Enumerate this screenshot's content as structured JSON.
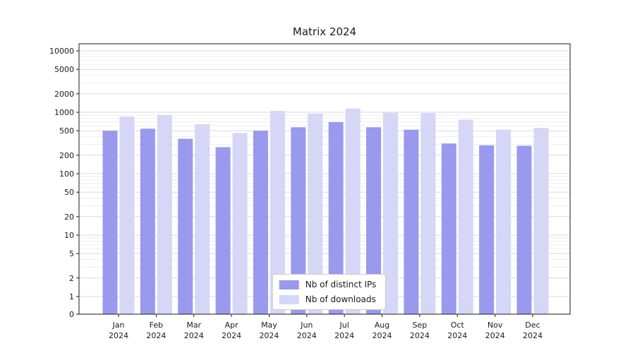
{
  "chart_data": {
    "type": "bar",
    "title": "Matrix 2024",
    "categories": [
      "Jan",
      "Feb",
      "Mar",
      "Apr",
      "May",
      "Jun",
      "Jul",
      "Aug",
      "Sep",
      "Oct",
      "Nov",
      "Dec"
    ],
    "year": "2024",
    "series": [
      {
        "name": "Nb of distinct IPs",
        "color": "#9999ee",
        "values": [
          500,
          540,
          370,
          270,
          500,
          570,
          690,
          570,
          520,
          310,
          290,
          285
        ]
      },
      {
        "name": "Nb of downloads",
        "color": "#d6d6f6",
        "values": [
          850,
          900,
          640,
          460,
          1050,
          950,
          1150,
          980,
          970,
          760,
          520,
          555
        ]
      }
    ],
    "yscale": "symlog",
    "yticks": [
      10000,
      5000,
      2000,
      1000,
      500,
      200,
      100,
      50,
      20,
      10,
      5,
      2,
      1,
      0
    ],
    "ylim": [
      0,
      13000
    ],
    "grid": "horizontal-major-minor",
    "legend_position": "lower center",
    "colors": {
      "major_grid": "#d9d9d9",
      "minor_grid": "#ededed",
      "axis": "#1a1a1a",
      "text": "#1a1a1a"
    }
  }
}
